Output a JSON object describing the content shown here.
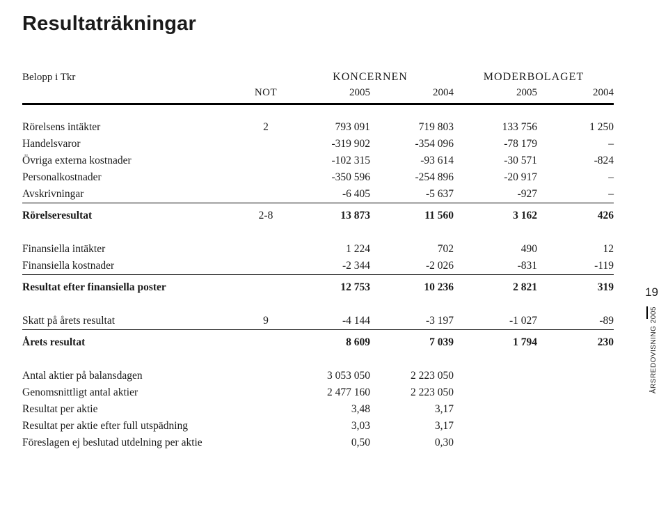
{
  "title": "Resultaträkningar",
  "unit_label": "Belopp i Tkr",
  "group_headers": {
    "left": "KONCERNEN",
    "right": "MODERBOLAGET"
  },
  "not_label": "NOT",
  "years": {
    "c1": "2005",
    "c2": "2004",
    "c3": "2005",
    "c4": "2004"
  },
  "rows": {
    "r1": {
      "label": "Rörelsens intäkter",
      "not": "2",
      "v1": "793 091",
      "v2": "719 803",
      "v3": "133 756",
      "v4": "1 250"
    },
    "r2": {
      "label": "Handelsvaror",
      "not": "",
      "v1": "-319 902",
      "v2": "-354 096",
      "v3": "-78 179",
      "v4": "–"
    },
    "r3": {
      "label": "Övriga externa kostnader",
      "not": "",
      "v1": "-102 315",
      "v2": "-93 614",
      "v3": "-30 571",
      "v4": "-824"
    },
    "r4": {
      "label": "Personalkostnader",
      "not": "",
      "v1": "-350 596",
      "v2": "-254 896",
      "v3": "-20 917",
      "v4": "–"
    },
    "r5": {
      "label": "Avskrivningar",
      "not": "",
      "v1": "-6 405",
      "v2": "-5 637",
      "v3": "-927",
      "v4": "–"
    },
    "r6": {
      "label": "Rörelseresultat",
      "not": "2-8",
      "v1": "13 873",
      "v2": "11 560",
      "v3": "3 162",
      "v4": "426"
    },
    "r7": {
      "label": "Finansiella intäkter",
      "not": "",
      "v1": "1 224",
      "v2": "702",
      "v3": "490",
      "v4": "12"
    },
    "r8": {
      "label": "Finansiella kostnader",
      "not": "",
      "v1": "-2 344",
      "v2": "-2 026",
      "v3": "-831",
      "v4": "-119"
    },
    "r9": {
      "label": "Resultat efter finansiella poster",
      "not": "",
      "v1": "12 753",
      "v2": "10 236",
      "v3": "2 821",
      "v4": "319"
    },
    "r10": {
      "label": "Skatt på årets resultat",
      "not": "9",
      "v1": "-4 144",
      "v2": "-3 197",
      "v3": "-1 027",
      "v4": "-89"
    },
    "r11": {
      "label": "Årets resultat",
      "not": "",
      "v1": "8 609",
      "v2": "7 039",
      "v3": "1 794",
      "v4": "230"
    },
    "r12": {
      "label": "Antal aktier på balansdagen",
      "not": "",
      "v1": "3 053 050",
      "v2": "2 223 050",
      "v3": "",
      "v4": ""
    },
    "r13": {
      "label": "Genomsnittligt antal aktier",
      "not": "",
      "v1": "2 477 160",
      "v2": "2 223 050",
      "v3": "",
      "v4": ""
    },
    "r14": {
      "label": "Resultat per aktie",
      "not": "",
      "v1": "3,48",
      "v2": "3,17",
      "v3": "",
      "v4": ""
    },
    "r15": {
      "label": "Resultat per aktie efter full utspädning",
      "not": "",
      "v1": "3,03",
      "v2": "3,17",
      "v3": "",
      "v4": ""
    },
    "r16": {
      "label": "Föreslagen ej beslutad utdelning per aktie",
      "not": "",
      "v1": "0,50",
      "v2": "0,30",
      "v3": "",
      "v4": ""
    }
  },
  "side": {
    "page_number": "19",
    "caption": "ÅRSREDOVISNING 2005"
  }
}
